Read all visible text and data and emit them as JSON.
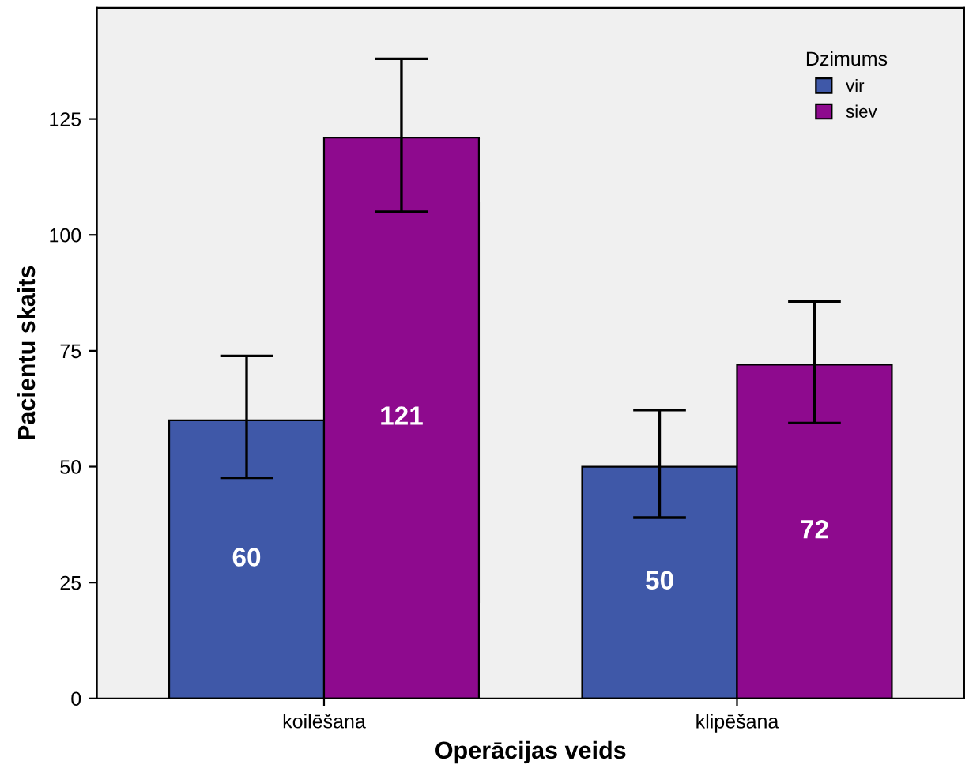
{
  "chart_data": {
    "type": "bar",
    "xlabel": "Operācijas veids",
    "ylabel": "Pacientu skaits",
    "legend_title": "Dzimums",
    "categories": [
      "koilēšana",
      "klipēšana"
    ],
    "series": [
      {
        "name": "vir",
        "color": "#3f58a8",
        "values": [
          60,
          50
        ],
        "errors": [
          [
            47.6,
            73.9
          ],
          [
            39,
            62.2
          ]
        ]
      },
      {
        "name": "siev",
        "color": "#8e0a8e",
        "values": [
          121,
          72
        ],
        "errors": [
          [
            105,
            138
          ],
          [
            59.4,
            85.6
          ]
        ]
      }
    ],
    "ylim": [
      0,
      149
    ],
    "yticks": [
      0,
      25,
      50,
      75,
      100,
      125
    ],
    "grid": false,
    "legend": "top right",
    "data_labels": true
  }
}
